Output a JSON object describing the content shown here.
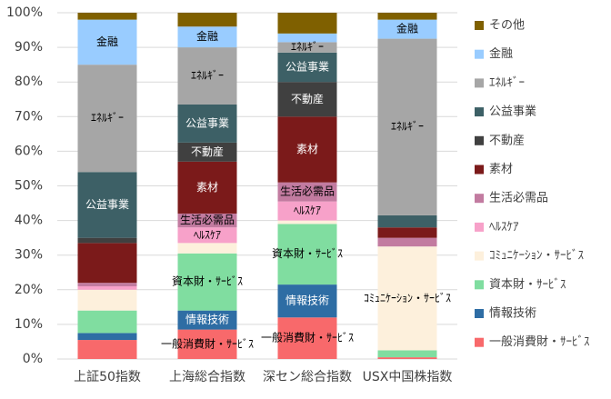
{
  "chart_data": {
    "type": "stacked-bar-100",
    "categories": [
      "上証50指数",
      "上海総合指数",
      "深セン総合指数",
      "USX中国株指数"
    ],
    "ylim": [
      0,
      100
    ],
    "yticks": [
      {
        "value": 0,
        "label": "0%"
      },
      {
        "value": 10,
        "label": "10%"
      },
      {
        "value": 20,
        "label": "20%"
      },
      {
        "value": 30,
        "label": "30%"
      },
      {
        "value": 40,
        "label": "40%"
      },
      {
        "value": 50,
        "label": "50%"
      },
      {
        "value": 60,
        "label": "60%"
      },
      {
        "value": 70,
        "label": "70%"
      },
      {
        "value": 80,
        "label": "80%"
      },
      {
        "value": 90,
        "label": "90%"
      },
      {
        "value": 100,
        "label": "100%"
      }
    ],
    "grid": true,
    "legend": "right",
    "series": [
      {
        "name": "一般消費財・ｻｰﾋﾞｽ",
        "color": "#f8696b",
        "values": [
          5.5,
          8.5,
          12,
          0.5
        ],
        "show_labels": [
          false,
          true,
          true,
          false
        ]
      },
      {
        "name": "情報技術",
        "color": "#2e6da4",
        "values": [
          2,
          5.5,
          9.5,
          0
        ],
        "show_labels": [
          false,
          true,
          true,
          false
        ]
      },
      {
        "name": "資本財・ｻｰﾋﾞｽ",
        "color": "#80dda0",
        "values": [
          6.5,
          16.5,
          17.5,
          2
        ],
        "show_labels": [
          false,
          true,
          true,
          false
        ]
      },
      {
        "name": "ｺﾐｭﾆｹｰｼｮﾝ・ｻｰﾋﾞｽ",
        "color": "#fdf0dc",
        "values": [
          6,
          3,
          1,
          30
        ],
        "show_labels": [
          false,
          false,
          false,
          true
        ]
      },
      {
        "name": "ﾍﾙｽｹｱ",
        "color": "#f7a1c9",
        "values": [
          1,
          4.5,
          5.5,
          0
        ],
        "show_labels": [
          false,
          true,
          true,
          false
        ]
      },
      {
        "name": "生活必需品",
        "color": "#c27ba0",
        "values": [
          1,
          4,
          5.5,
          2.5
        ],
        "show_labels": [
          false,
          true,
          true,
          false
        ]
      },
      {
        "name": "素材",
        "color": "#7b1a1a",
        "values": [
          11.5,
          15,
          19,
          3
        ],
        "show_labels": [
          false,
          true,
          true,
          false
        ]
      },
      {
        "name": "不動産",
        "color": "#404040",
        "values": [
          1.5,
          5.5,
          10,
          0
        ],
        "show_labels": [
          false,
          true,
          true,
          false
        ]
      },
      {
        "name": "公益事業",
        "color": "#3d6066",
        "values": [
          19,
          11,
          8.5,
          3.5
        ],
        "show_labels": [
          true,
          true,
          true,
          false
        ]
      },
      {
        "name": "ｴﾈﾙｷﾞｰ",
        "color": "#a6a6a6",
        "values": [
          31,
          16.5,
          3,
          51
        ],
        "show_labels": [
          true,
          true,
          true,
          true
        ]
      },
      {
        "name": "金融",
        "color": "#99ccff",
        "values": [
          13,
          6,
          2.5,
          5.5
        ],
        "show_labels": [
          true,
          true,
          false,
          true
        ]
      },
      {
        "name": "その他",
        "color": "#7f6000",
        "values": [
          2,
          4,
          6,
          2
        ],
        "show_labels": [
          false,
          false,
          false,
          false
        ]
      }
    ]
  }
}
